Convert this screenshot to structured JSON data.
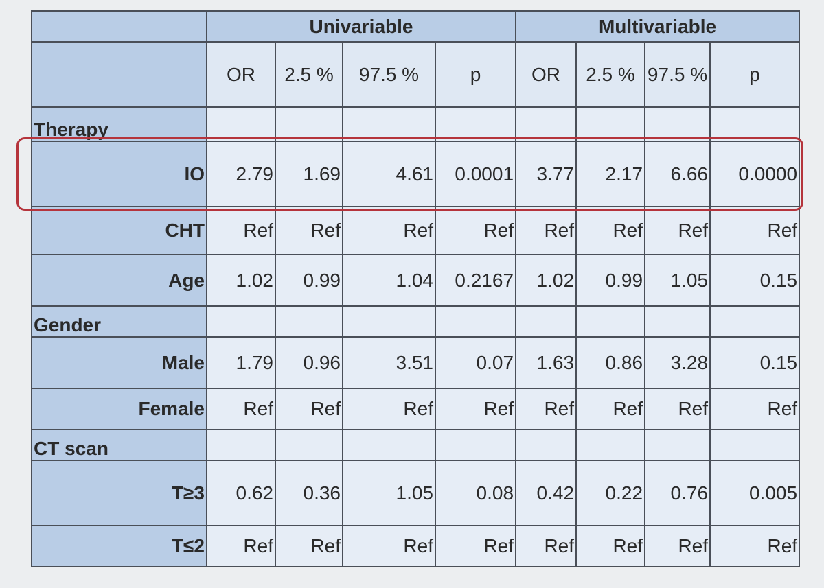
{
  "header": {
    "groups": [
      "Univariable",
      "Multivariable"
    ],
    "columns": [
      "OR",
      "2.5 %",
      "97.5 %",
      "p",
      "OR",
      "2.5 %",
      "97.5 %",
      "p"
    ]
  },
  "rows": [
    {
      "label": "Therapy"
    },
    {
      "label": "IO",
      "values": [
        "2.79",
        "1.69",
        "4.61",
        "0.0001",
        "3.77",
        "2.17",
        "6.66",
        "0.0000"
      ]
    },
    {
      "label": "CHT",
      "values": [
        "Ref",
        "Ref",
        "Ref",
        "Ref",
        "Ref",
        "Ref",
        "Ref",
        "Ref"
      ]
    },
    {
      "label": "Age",
      "values": [
        "1.02",
        "0.99",
        "1.04",
        "0.2167",
        "1.02",
        "0.99",
        "1.05",
        "0.15"
      ]
    },
    {
      "label": "Gender"
    },
    {
      "label": "Male",
      "values": [
        "1.79",
        "0.96",
        "3.51",
        "0.07",
        "1.63",
        "0.86",
        "3.28",
        "0.15"
      ]
    },
    {
      "label": "Female",
      "values": [
        "Ref",
        "Ref",
        "Ref",
        "Ref",
        "Ref",
        "Ref",
        "Ref",
        "Ref"
      ]
    },
    {
      "label": "CT scan"
    },
    {
      "label": "T≥3",
      "values": [
        "0.62",
        "0.36",
        "1.05",
        "0.08",
        "0.42",
        "0.22",
        "0.76",
        "0.005"
      ]
    },
    {
      "label": "T≤2",
      "values": [
        "Ref",
        "Ref",
        "Ref",
        "Ref",
        "Ref",
        "Ref",
        "Ref",
        "Ref"
      ]
    }
  ]
}
